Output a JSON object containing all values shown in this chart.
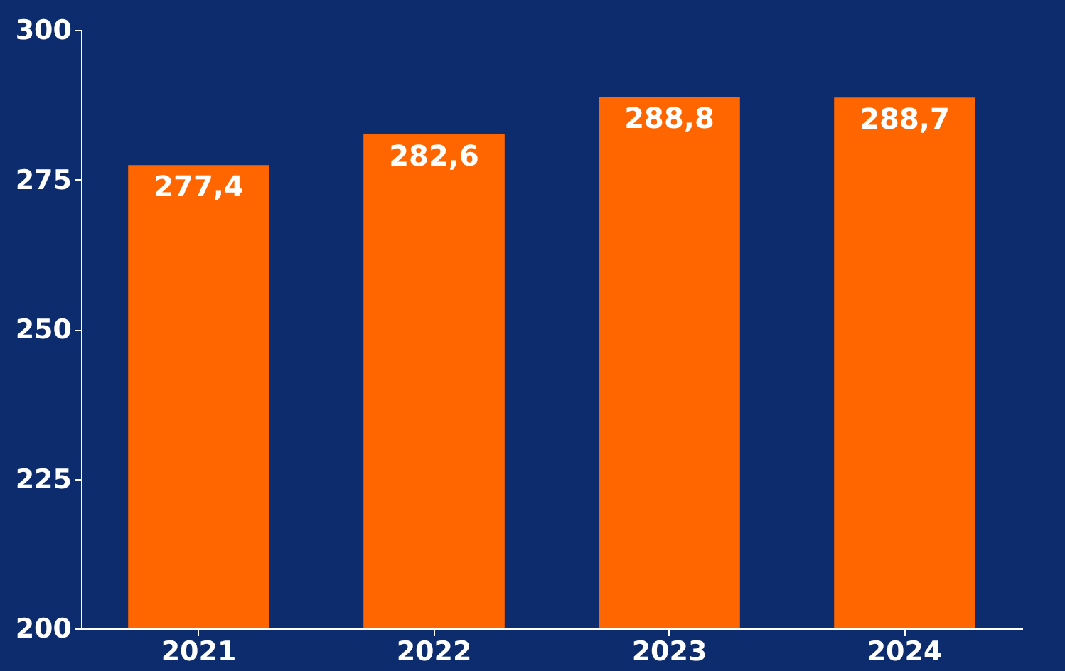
{
  "chart_data": {
    "type": "bar",
    "categories": [
      "2021",
      "2022",
      "2023",
      "2024"
    ],
    "values": [
      277.4,
      282.6,
      288.8,
      288.7
    ],
    "value_labels": [
      "277,4",
      "282,6",
      "288,8",
      "288,7"
    ],
    "color": "#ff6600",
    "ylim": [
      200,
      300
    ],
    "yticks": [
      200,
      225,
      250,
      275,
      300
    ],
    "grid": false
  }
}
